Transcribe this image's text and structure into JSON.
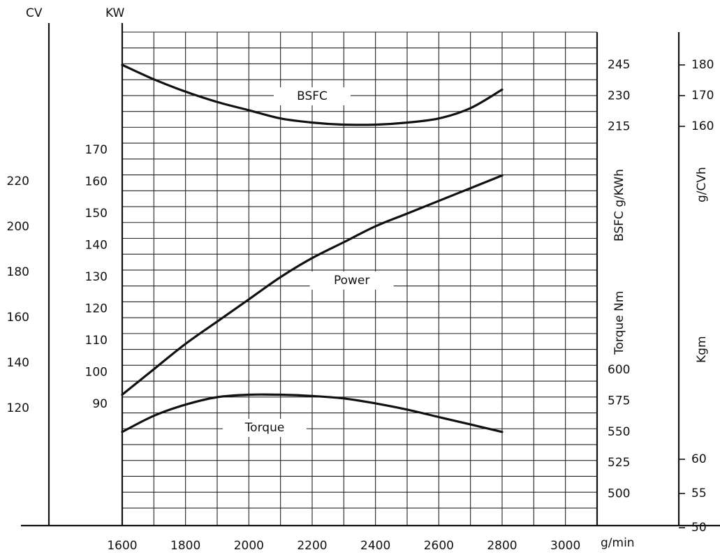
{
  "units": {
    "cv": "CV",
    "kw": "KW",
    "x": "g/min",
    "bsfc_kwh": "BSFC g/KWh",
    "torque": "Torque Nm",
    "bsfc_cvh": "g/CVh",
    "kgm": "Kgm"
  },
  "chart_data": {
    "type": "line",
    "x": [
      1600,
      1700,
      1800,
      1900,
      2000,
      2100,
      2200,
      2300,
      2400,
      2500,
      2600,
      2700,
      2800
    ],
    "series": [
      {
        "name": "Power",
        "axis": "KW",
        "values": [
          93,
          101,
          109,
          116,
          123,
          130,
          136,
          141,
          146,
          150,
          154,
          158,
          162
        ]
      },
      {
        "name": "Torque",
        "axis": "Torque Nm",
        "values": [
          550,
          563,
          572,
          578,
          580,
          580,
          579,
          577,
          573,
          568,
          562,
          556,
          550
        ]
      },
      {
        "name": "BSFC",
        "axis": "BSFC g/KWh",
        "values": [
          245,
          238,
          232,
          227,
          223,
          219,
          217,
          216,
          216,
          217,
          219,
          224,
          233
        ]
      }
    ],
    "x_axis": {
      "ticks": [
        1600,
        1800,
        2000,
        2200,
        2400,
        2600,
        2800,
        3000
      ],
      "range": [
        1600,
        3000
      ],
      "label": "g/min"
    },
    "axes": {
      "kw": {
        "ticks": [
          90,
          100,
          110,
          120,
          130,
          140,
          150,
          160,
          170
        ],
        "label": "KW"
      },
      "cv": {
        "ticks": [
          120,
          140,
          160,
          180,
          200,
          220
        ],
        "label": "CV"
      },
      "bsfc_kwh": {
        "ticks": [
          215,
          230,
          245
        ],
        "label": "BSFC g/KWh"
      },
      "torque_nm": {
        "ticks": [
          500,
          525,
          550,
          575,
          600
        ],
        "label": "Torque Nm"
      },
      "bsfc_cvh": {
        "ticks": [
          160,
          170,
          180
        ],
        "label": "g/CVh"
      },
      "kgm": {
        "ticks": [
          50,
          55,
          60
        ],
        "label": "Kgm"
      }
    },
    "grid": true
  }
}
